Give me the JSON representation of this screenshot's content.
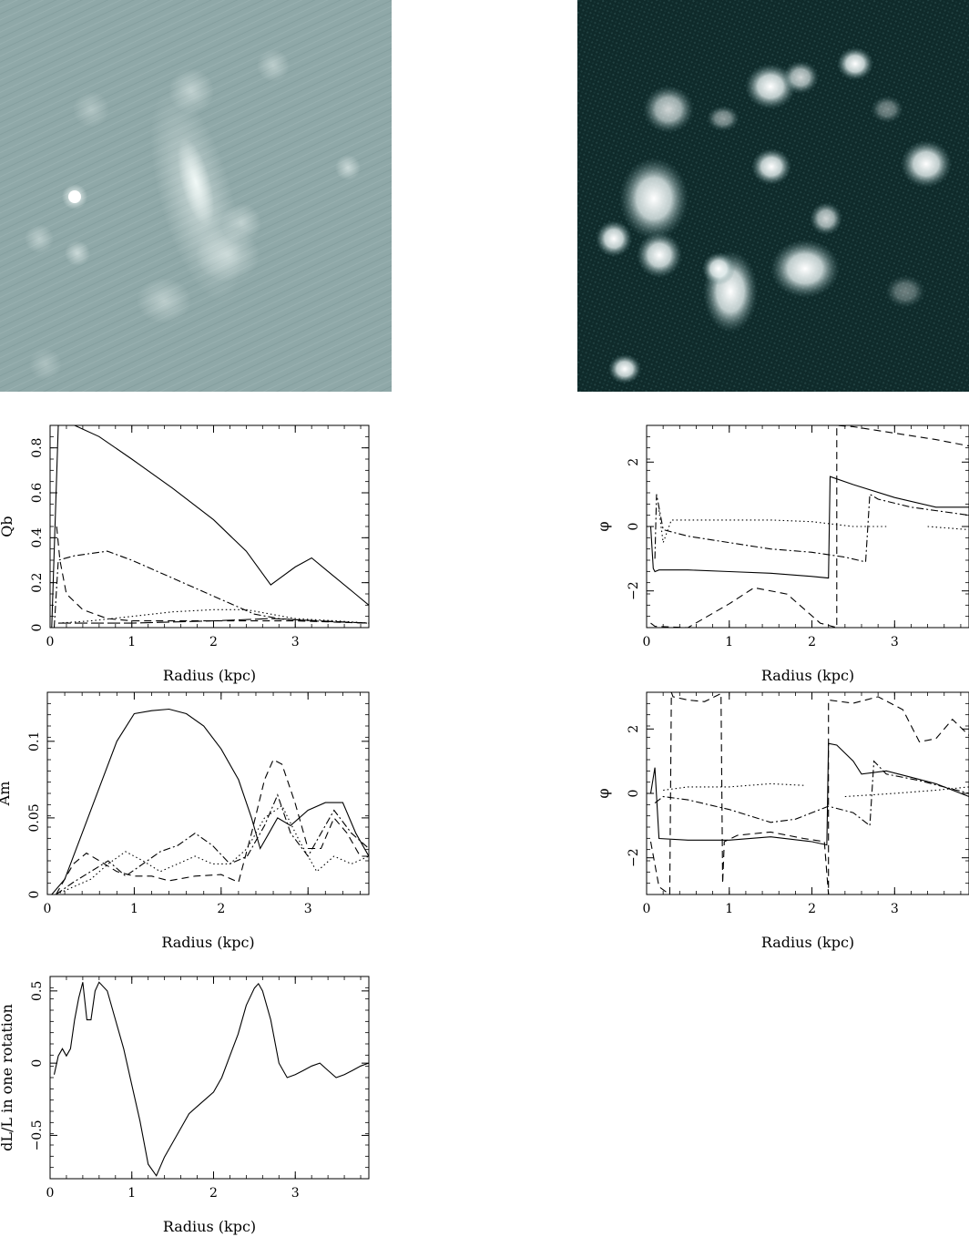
{
  "images": [
    {
      "name": "optical-galaxy-image",
      "colors": {
        "bg": "#8fa8a8",
        "glow": "#eef6f4"
      }
    },
    {
      "name": "halpha-galaxy-image",
      "colors": {
        "bg": "#0f2a2a",
        "glow": "#f8fbfb"
      }
    }
  ],
  "chart_data": [
    {
      "type": "line",
      "xlabel": "Radius (kpc)",
      "ylabel": "Qb",
      "xlim": [
        0,
        3.9
      ],
      "ylim": [
        0,
        0.9
      ],
      "xticks": [
        "0",
        "1",
        "2",
        "3"
      ],
      "yticks": [
        "0",
        "0.2",
        "0.4",
        "0.6",
        "0.8"
      ],
      "series": [
        {
          "style": "solid",
          "x": [
            0.02,
            0.1,
            0.3,
            0.6,
            1.0,
            1.5,
            2.0,
            2.4,
            2.7,
            3.0,
            3.2,
            3.4,
            3.7,
            3.9
          ],
          "y": [
            0.0,
            0.9,
            0.9,
            0.85,
            0.75,
            0.62,
            0.48,
            0.34,
            0.19,
            0.27,
            0.31,
            0.25,
            0.16,
            0.1
          ]
        },
        {
          "style": "dashdot",
          "x": [
            0.05,
            0.1,
            0.3,
            0.7,
            1.0,
            1.5,
            2.0,
            2.5,
            2.8,
            3.2,
            3.9
          ],
          "y": [
            0.0,
            0.3,
            0.32,
            0.34,
            0.3,
            0.22,
            0.14,
            0.06,
            0.04,
            0.03,
            0.02
          ]
        },
        {
          "style": "dashed",
          "x": [
            0.08,
            0.12,
            0.2,
            0.4,
            0.7,
            1.0,
            2.0,
            3.0,
            3.9
          ],
          "y": [
            0.45,
            0.3,
            0.15,
            0.08,
            0.04,
            0.03,
            0.03,
            0.03,
            0.02
          ]
        },
        {
          "style": "dotted",
          "x": [
            0.1,
            0.5,
            1.0,
            1.5,
            2.0,
            2.4,
            2.7,
            3.0,
            3.5,
            3.9
          ],
          "y": [
            0.02,
            0.03,
            0.05,
            0.07,
            0.08,
            0.08,
            0.06,
            0.04,
            0.03,
            0.02
          ]
        },
        {
          "style": "longdash",
          "x": [
            0.1,
            0.5,
            1.0,
            2.0,
            2.7,
            3.3,
            3.9
          ],
          "y": [
            0.02,
            0.02,
            0.02,
            0.03,
            0.04,
            0.03,
            0.02
          ]
        }
      ]
    },
    {
      "type": "line",
      "xlabel": "Radius (kpc)",
      "ylabel": "φ",
      "xlim": [
        0,
        3.9
      ],
      "ylim": [
        -3.14,
        3.14
      ],
      "xticks": [
        "0",
        "1",
        "2",
        "3"
      ],
      "yticks": [
        "−2",
        "0",
        "2"
      ],
      "series": [
        {
          "style": "solid",
          "x": [
            0.05,
            0.08,
            0.1,
            0.15,
            0.5,
            1.0,
            1.5,
            2.0,
            2.2,
            2.22,
            2.5,
            3.0,
            3.5,
            3.9
          ],
          "y": [
            0.0,
            -1.3,
            -1.4,
            -1.35,
            -1.35,
            -1.4,
            -1.45,
            -1.55,
            -1.6,
            1.55,
            1.3,
            0.9,
            0.6,
            0.6
          ]
        },
        {
          "style": "dashed",
          "x": [
            0.05,
            0.1,
            0.5,
            1.0,
            1.3,
            1.7,
            2.1,
            2.3,
            2.3,
            2.5,
            3.0,
            3.5,
            3.9
          ],
          "y": [
            -3.0,
            -3.1,
            -3.14,
            -2.4,
            -1.9,
            -2.1,
            -3.0,
            -3.14,
            3.14,
            3.1,
            2.9,
            2.7,
            2.5
          ]
        },
        {
          "style": "dashdot",
          "x": [
            0.1,
            0.12,
            0.2,
            0.5,
            1.0,
            1.5,
            2.0,
            2.4,
            2.65,
            2.7,
            2.8,
            3.2,
            3.9
          ],
          "y": [
            -1.0,
            1.0,
            -0.1,
            -0.3,
            -0.5,
            -0.7,
            -0.8,
            -0.95,
            -1.1,
            1.0,
            0.85,
            0.6,
            0.35
          ]
        },
        {
          "style": "dotted",
          "x": [
            0.15,
            0.2,
            0.3,
            0.5,
            1.0,
            1.5,
            2.0,
            2.5,
            2.9
          ],
          "y": [
            0.5,
            -0.5,
            0.2,
            0.2,
            0.2,
            0.2,
            0.15,
            0.0,
            0.0
          ]
        },
        {
          "style": "dotted",
          "x": [
            3.4,
            3.9
          ],
          "y": [
            0.0,
            -0.1
          ]
        }
      ]
    },
    {
      "type": "line",
      "xlabel": "Radius (kpc)",
      "ylabel": "Am",
      "xlim": [
        0,
        3.7
      ],
      "ylim": [
        0,
        0.132
      ],
      "xticks": [
        "0",
        "1",
        "2",
        "3"
      ],
      "yticks": [
        "0",
        "0.05",
        "0.1"
      ],
      "series": [
        {
          "style": "solid",
          "x": [
            0.05,
            0.2,
            0.4,
            0.6,
            0.8,
            1.0,
            1.2,
            1.4,
            1.6,
            1.8,
            2.0,
            2.2,
            2.35,
            2.45,
            2.55,
            2.65,
            2.8,
            3.0,
            3.2,
            3.4,
            3.55,
            3.7
          ],
          "y": [
            0.0,
            0.01,
            0.04,
            0.07,
            0.1,
            0.118,
            0.12,
            0.121,
            0.118,
            0.11,
            0.095,
            0.075,
            0.05,
            0.03,
            0.04,
            0.05,
            0.045,
            0.055,
            0.06,
            0.06,
            0.04,
            0.025
          ]
        },
        {
          "style": "dashed",
          "x": [
            0.1,
            0.3,
            0.45,
            0.6,
            0.8,
            1.0,
            1.2,
            1.4,
            1.7,
            2.0,
            2.2,
            2.35,
            2.5,
            2.6,
            2.7,
            2.85,
            3.0,
            3.15,
            3.3,
            3.45,
            3.6,
            3.7
          ],
          "y": [
            0.0,
            0.02,
            0.027,
            0.022,
            0.015,
            0.012,
            0.012,
            0.009,
            0.012,
            0.013,
            0.008,
            0.04,
            0.075,
            0.088,
            0.085,
            0.06,
            0.03,
            0.03,
            0.05,
            0.04,
            0.025,
            0.025
          ]
        },
        {
          "style": "dashdot",
          "x": [
            0.1,
            0.3,
            0.5,
            0.7,
            0.9,
            1.1,
            1.3,
            1.5,
            1.7,
            1.9,
            2.1,
            2.3,
            2.5,
            2.65,
            2.8,
            3.0,
            3.15,
            3.3,
            3.5,
            3.7
          ],
          "y": [
            0.0,
            0.008,
            0.015,
            0.022,
            0.012,
            0.02,
            0.028,
            0.032,
            0.04,
            0.032,
            0.02,
            0.025,
            0.045,
            0.065,
            0.04,
            0.025,
            0.04,
            0.055,
            0.04,
            0.03
          ]
        },
        {
          "style": "dotted",
          "x": [
            0.1,
            0.3,
            0.5,
            0.7,
            0.9,
            1.1,
            1.3,
            1.5,
            1.7,
            1.9,
            2.1,
            2.3,
            2.5,
            2.7,
            2.9,
            3.1,
            3.3,
            3.5,
            3.7
          ],
          "y": [
            0.0,
            0.005,
            0.01,
            0.02,
            0.028,
            0.022,
            0.015,
            0.02,
            0.025,
            0.02,
            0.02,
            0.03,
            0.05,
            0.058,
            0.035,
            0.015,
            0.025,
            0.02,
            0.025
          ]
        }
      ]
    },
    {
      "type": "line",
      "xlabel": "Radius (kpc)",
      "ylabel": "φ",
      "xlim": [
        0,
        3.9
      ],
      "ylim": [
        -3.14,
        3.14
      ],
      "xticks": [
        "0",
        "1",
        "2",
        "3"
      ],
      "yticks": [
        "−2",
        "0",
        "2"
      ],
      "series": [
        {
          "style": "solid",
          "x": [
            0.05,
            0.1,
            0.15,
            0.5,
            1.0,
            1.5,
            2.0,
            2.18,
            2.2,
            2.3,
            2.5,
            2.6,
            2.9,
            3.2,
            3.5,
            3.9
          ],
          "y": [
            0.0,
            0.8,
            -1.4,
            -1.45,
            -1.45,
            -1.35,
            -1.5,
            -1.6,
            1.55,
            1.5,
            1.0,
            0.6,
            0.7,
            0.5,
            0.3,
            -0.1
          ]
        },
        {
          "style": "dashed",
          "x": [
            0.05,
            0.15,
            0.28,
            0.3,
            0.32,
            0.5,
            0.7,
            0.9,
            0.92,
            0.94,
            1.1,
            1.5,
            1.9,
            2.15,
            2.2,
            2.2,
            2.5,
            2.8,
            3.1,
            3.3,
            3.5,
            3.7,
            3.9
          ],
          "y": [
            -1.5,
            -2.9,
            -3.14,
            3.14,
            3.0,
            2.9,
            2.85,
            3.1,
            -2.8,
            -1.5,
            -1.3,
            -1.2,
            -1.4,
            -1.5,
            -3.14,
            2.9,
            2.8,
            3.0,
            2.6,
            1.6,
            1.7,
            2.3,
            1.8
          ]
        },
        {
          "style": "dashdot",
          "x": [
            0.1,
            0.2,
            0.5,
            1.0,
            1.5,
            1.8,
            2.2,
            2.5,
            2.7,
            2.75,
            2.9,
            3.3,
            3.9
          ],
          "y": [
            -0.3,
            -0.1,
            -0.2,
            -0.5,
            -0.9,
            -0.8,
            -0.4,
            -0.6,
            -1.0,
            1.0,
            0.6,
            0.4,
            0.0
          ]
        },
        {
          "style": "dotted",
          "x": [
            0.2,
            0.5,
            1.0,
            1.5,
            1.9
          ],
          "y": [
            0.1,
            0.2,
            0.2,
            0.3,
            0.25
          ]
        },
        {
          "style": "dotted",
          "x": [
            2.4,
            3.0,
            3.5,
            3.9
          ],
          "y": [
            -0.1,
            0.0,
            0.1,
            0.2
          ]
        }
      ]
    },
    {
      "type": "line",
      "xlabel": "Radius (kpc)",
      "ylabel": "dL/L in one rotation",
      "xlim": [
        0,
        3.9
      ],
      "ylim": [
        -0.8,
        0.6
      ],
      "xticks": [
        "0",
        "1",
        "2",
        "3"
      ],
      "yticks": [
        "−0.5",
        "0",
        "0.5"
      ],
      "series": [
        {
          "style": "solid",
          "x": [
            0.05,
            0.1,
            0.15,
            0.2,
            0.25,
            0.3,
            0.35,
            0.4,
            0.45,
            0.5,
            0.55,
            0.6,
            0.7,
            0.8,
            0.9,
            1.0,
            1.1,
            1.2,
            1.3,
            1.4,
            1.5,
            1.6,
            1.7,
            1.8,
            1.9,
            2.0,
            2.1,
            2.2,
            2.3,
            2.4,
            2.5,
            2.55,
            2.6,
            2.7,
            2.8,
            2.9,
            3.0,
            3.1,
            3.2,
            3.3,
            3.4,
            3.5,
            3.6,
            3.7,
            3.8,
            3.9
          ],
          "y": [
            -0.08,
            0.05,
            0.1,
            0.05,
            0.1,
            0.3,
            0.45,
            0.56,
            0.3,
            0.3,
            0.5,
            0.56,
            0.5,
            0.3,
            0.1,
            -0.15,
            -0.4,
            -0.7,
            -0.78,
            -0.65,
            -0.55,
            -0.45,
            -0.35,
            -0.3,
            -0.25,
            -0.2,
            -0.1,
            0.05,
            0.2,
            0.4,
            0.52,
            0.55,
            0.5,
            0.3,
            0.0,
            -0.1,
            -0.08,
            -0.05,
            -0.02,
            0.0,
            -0.05,
            -0.1,
            -0.08,
            -0.05,
            -0.02,
            0.0
          ]
        }
      ]
    }
  ]
}
